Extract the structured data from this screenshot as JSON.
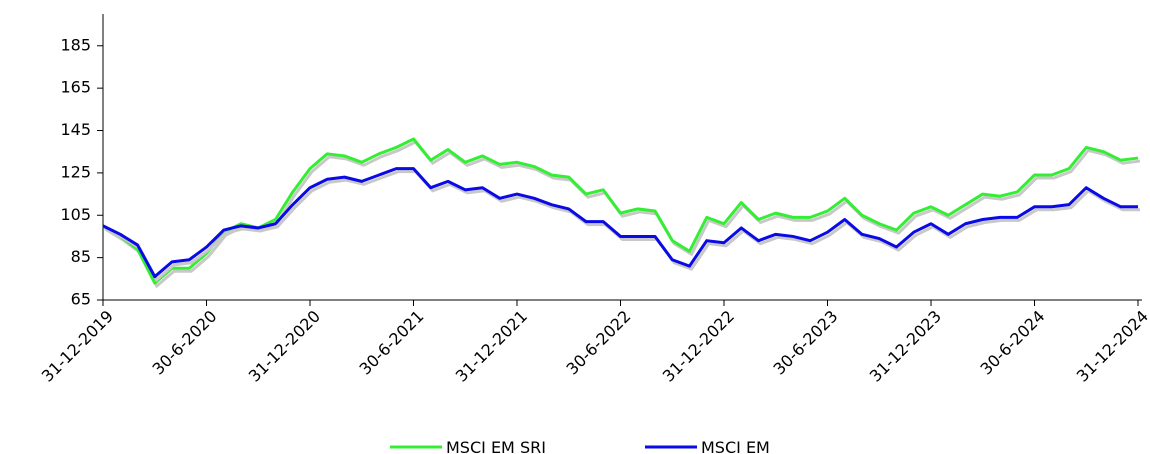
{
  "chart_data": {
    "type": "line",
    "categories": [
      "31-12-2019",
      null,
      null,
      null,
      null,
      null,
      "30-6-2020",
      null,
      null,
      null,
      null,
      null,
      "31-12-2020",
      null,
      null,
      null,
      null,
      null,
      "30-6-2021",
      null,
      null,
      null,
      null,
      null,
      "31-12-2021",
      null,
      null,
      null,
      null,
      null,
      "30-6-2022",
      null,
      null,
      null,
      null,
      null,
      "31-12-2022",
      null,
      null,
      null,
      null,
      null,
      "30-6-2023",
      null,
      null,
      null,
      null,
      null,
      "31-12-2023",
      null,
      null,
      null,
      null,
      null,
      "30-6-2024",
      null,
      null,
      null,
      null,
      null,
      "31-12-2024"
    ],
    "series": [
      {
        "name": "MSCI EM SRI",
        "color": "#33ee33",
        "values": [
          100,
          95,
          89,
          73,
          80,
          80,
          87,
          97,
          101,
          99,
          103,
          116,
          127,
          134,
          133,
          130,
          134,
          137,
          141,
          131,
          136,
          130,
          133,
          129,
          130,
          128,
          124,
          123,
          115,
          117,
          106,
          108,
          107,
          93,
          88,
          104,
          101,
          111,
          103,
          106,
          104,
          104,
          107,
          113,
          105,
          101,
          98,
          106,
          109,
          105,
          110,
          115,
          114,
          116,
          124,
          124,
          127,
          137,
          135,
          131,
          132
        ]
      },
      {
        "name": "MSCI EM",
        "color": "#0a0ae6",
        "values": [
          100,
          96,
          91,
          76,
          83,
          84,
          90,
          98,
          100,
          99,
          101,
          110,
          118,
          122,
          123,
          121,
          124,
          127,
          127,
          118,
          121,
          117,
          118,
          113,
          115,
          113,
          110,
          108,
          102,
          102,
          95,
          95,
          95,
          84,
          81,
          93,
          92,
          99,
          93,
          96,
          95,
          93,
          97,
          103,
          96,
          94,
          90,
          97,
          101,
          96,
          101,
          103,
          104,
          104,
          109,
          109,
          110,
          118,
          113,
          109,
          109
        ]
      }
    ],
    "ylim": [
      65,
      200
    ],
    "yticks": [
      65,
      85,
      105,
      125,
      145,
      165,
      185
    ],
    "legend": "bottom"
  }
}
